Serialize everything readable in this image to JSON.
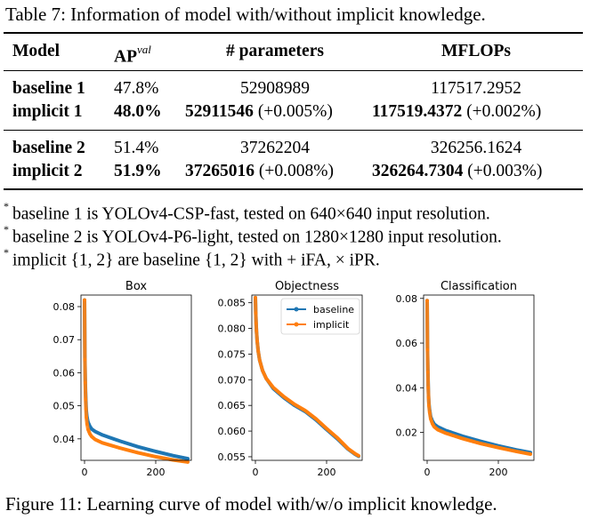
{
  "table": {
    "caption": "Table 7: Information of model with/without implicit knowledge.",
    "headers": {
      "model": "Model",
      "ap_base": "AP",
      "ap_sup": "val",
      "params": "# parameters",
      "mflops": "MFLOPs"
    },
    "rows": [
      {
        "model": "baseline 1",
        "ap": "47.8%",
        "params": "52908989",
        "params_delta": "",
        "mflops": "117517.2952",
        "mflops_delta": ""
      },
      {
        "model": "implicit 1",
        "ap": "48.0%",
        "params": "52911546",
        "params_delta": " (+0.005%)",
        "mflops": "117519.4372",
        "mflops_delta": " (+0.002%)"
      },
      {
        "model": "baseline 2",
        "ap": "51.4%",
        "params": "37262204",
        "params_delta": "",
        "mflops": "326256.1624",
        "mflops_delta": ""
      },
      {
        "model": "implicit 2",
        "ap": "51.9%",
        "params": "37265016",
        "params_delta": " (+0.008%)",
        "mflops": "326264.7304",
        "mflops_delta": " (+0.003%)"
      }
    ],
    "notes": [
      {
        "mark": "*",
        "text": "baseline 1 is YOLOv4-CSP-fast, tested on 640×640 input resolution."
      },
      {
        "mark": "*",
        "text": "baseline 2 is YOLOv4-P6-light, tested on 1280×1280 input resolution."
      },
      {
        "mark": "*",
        "text": "implicit {1, 2} are baseline {1, 2} with + iFA, × iPR."
      }
    ]
  },
  "chart_data": [
    {
      "type": "line",
      "title": "Box",
      "xlim": [
        -10,
        300
      ],
      "ylim": [
        0.0335,
        0.0835
      ],
      "yticks": [
        "0.04",
        "0.05",
        "0.06",
        "0.07",
        "0.08"
      ],
      "yticks_values": [
        0.04,
        0.05,
        0.06,
        0.07,
        0.08
      ],
      "xticks": [
        "0",
        "200"
      ],
      "xticks_values": [
        0,
        200
      ],
      "series": [
        {
          "name": "baseline",
          "color": "#1f77b4",
          "points": [
            [
              0,
              0.082
            ],
            [
              1,
              0.065
            ],
            [
              2,
              0.058
            ],
            [
              3,
              0.054
            ],
            [
              4,
              0.051
            ],
            [
              5,
              0.0485
            ],
            [
              7,
              0.0465
            ],
            [
              10,
              0.045
            ],
            [
              15,
              0.0438
            ],
            [
              20,
              0.043
            ],
            [
              30,
              0.0422
            ],
            [
              50,
              0.0412
            ],
            [
              100,
              0.0393
            ],
            [
              150,
              0.0376
            ],
            [
              200,
              0.0362
            ],
            [
              250,
              0.0349
            ],
            [
              290,
              0.034
            ]
          ]
        },
        {
          "name": "implicit",
          "color": "#ff7f0e",
          "points": [
            [
              0,
              0.082
            ],
            [
              1,
              0.064
            ],
            [
              2,
              0.057
            ],
            [
              3,
              0.052
            ],
            [
              4,
              0.049
            ],
            [
              5,
              0.0465
            ],
            [
              7,
              0.0445
            ],
            [
              10,
              0.0428
            ],
            [
              15,
              0.0415
            ],
            [
              20,
              0.0407
            ],
            [
              30,
              0.0398
            ],
            [
              50,
              0.0388
            ],
            [
              100,
              0.0372
            ],
            [
              150,
              0.0358
            ],
            [
              200,
              0.0346
            ],
            [
              250,
              0.0336
            ],
            [
              290,
              0.033
            ]
          ]
        }
      ]
    },
    {
      "type": "line",
      "title": "Objectness",
      "xlim": [
        -10,
        300
      ],
      "ylim": [
        0.0543,
        0.0865
      ],
      "yticks": [
        "0.055",
        "0.060",
        "0.065",
        "0.070",
        "0.075",
        "0.080",
        "0.085"
      ],
      "yticks_values": [
        0.055,
        0.06,
        0.065,
        0.07,
        0.075,
        0.08,
        0.085
      ],
      "xticks": [
        "0",
        "200"
      ],
      "xticks_values": [
        0,
        200
      ],
      "legend": {
        "position": "upper-right"
      },
      "series": [
        {
          "name": "baseline",
          "color": "#1f77b4",
          "points": [
            [
              0,
              0.086
            ],
            [
              1,
              0.083
            ],
            [
              2,
              0.081
            ],
            [
              3,
              0.0795
            ],
            [
              5,
              0.0775
            ],
            [
              8,
              0.0755
            ],
            [
              12,
              0.0738
            ],
            [
              20,
              0.0718
            ],
            [
              30,
              0.0703
            ],
            [
              50,
              0.0683
            ],
            [
              80,
              0.0665
            ],
            [
              110,
              0.065
            ],
            [
              140,
              0.0638
            ],
            [
              170,
              0.0622
            ],
            [
              200,
              0.0603
            ],
            [
              230,
              0.0585
            ],
            [
              260,
              0.0565
            ],
            [
              280,
              0.0555
            ],
            [
              290,
              0.0551
            ]
          ]
        },
        {
          "name": "implicit",
          "color": "#ff7f0e",
          "points": [
            [
              0,
              0.086
            ],
            [
              1,
              0.083
            ],
            [
              2,
              0.081
            ],
            [
              3,
              0.0795
            ],
            [
              5,
              0.0775
            ],
            [
              8,
              0.0755
            ],
            [
              12,
              0.0738
            ],
            [
              20,
              0.0718
            ],
            [
              30,
              0.0703
            ],
            [
              50,
              0.0685
            ],
            [
              80,
              0.0667
            ],
            [
              110,
              0.0652
            ],
            [
              140,
              0.064
            ],
            [
              170,
              0.0624
            ],
            [
              200,
              0.0605
            ],
            [
              230,
              0.0587
            ],
            [
              260,
              0.0566
            ],
            [
              280,
              0.0556
            ],
            [
              290,
              0.0552
            ]
          ]
        }
      ]
    },
    {
      "type": "line",
      "title": "Classification",
      "xlim": [
        -10,
        300
      ],
      "ylim": [
        0.0075,
        0.0815
      ],
      "yticks": [
        "0.02",
        "0.04",
        "0.06",
        "0.08"
      ],
      "yticks_values": [
        0.02,
        0.04,
        0.06,
        0.08
      ],
      "xticks": [
        "0",
        "200"
      ],
      "xticks_values": [
        0,
        200
      ],
      "series": [
        {
          "name": "baseline",
          "color": "#1f77b4",
          "points": [
            [
              0,
              0.079
            ],
            [
              1,
              0.058
            ],
            [
              2,
              0.048
            ],
            [
              3,
              0.041
            ],
            [
              4,
              0.036
            ],
            [
              5,
              0.033
            ],
            [
              7,
              0.03
            ],
            [
              10,
              0.027
            ],
            [
              15,
              0.025
            ],
            [
              20,
              0.0237
            ],
            [
              30,
              0.0225
            ],
            [
              50,
              0.021
            ],
            [
              100,
              0.0183
            ],
            [
              150,
              0.016
            ],
            [
              200,
              0.014
            ],
            [
              250,
              0.0122
            ],
            [
              290,
              0.011
            ]
          ]
        },
        {
          "name": "implicit",
          "color": "#ff7f0e",
          "points": [
            [
              0,
              0.079
            ],
            [
              1,
              0.057
            ],
            [
              2,
              0.047
            ],
            [
              3,
              0.04
            ],
            [
              4,
              0.0355
            ],
            [
              5,
              0.032
            ],
            [
              7,
              0.029
            ],
            [
              10,
              0.026
            ],
            [
              15,
              0.0238
            ],
            [
              20,
              0.0225
            ],
            [
              30,
              0.0212
            ],
            [
              50,
              0.0198
            ],
            [
              100,
              0.0172
            ],
            [
              150,
              0.015
            ],
            [
              200,
              0.0132
            ],
            [
              250,
              0.0115
            ],
            [
              290,
              0.0103
            ]
          ]
        }
      ]
    }
  ],
  "figure": {
    "caption": "Figure 11: Learning curve of model with/w/o implicit knowledge."
  }
}
